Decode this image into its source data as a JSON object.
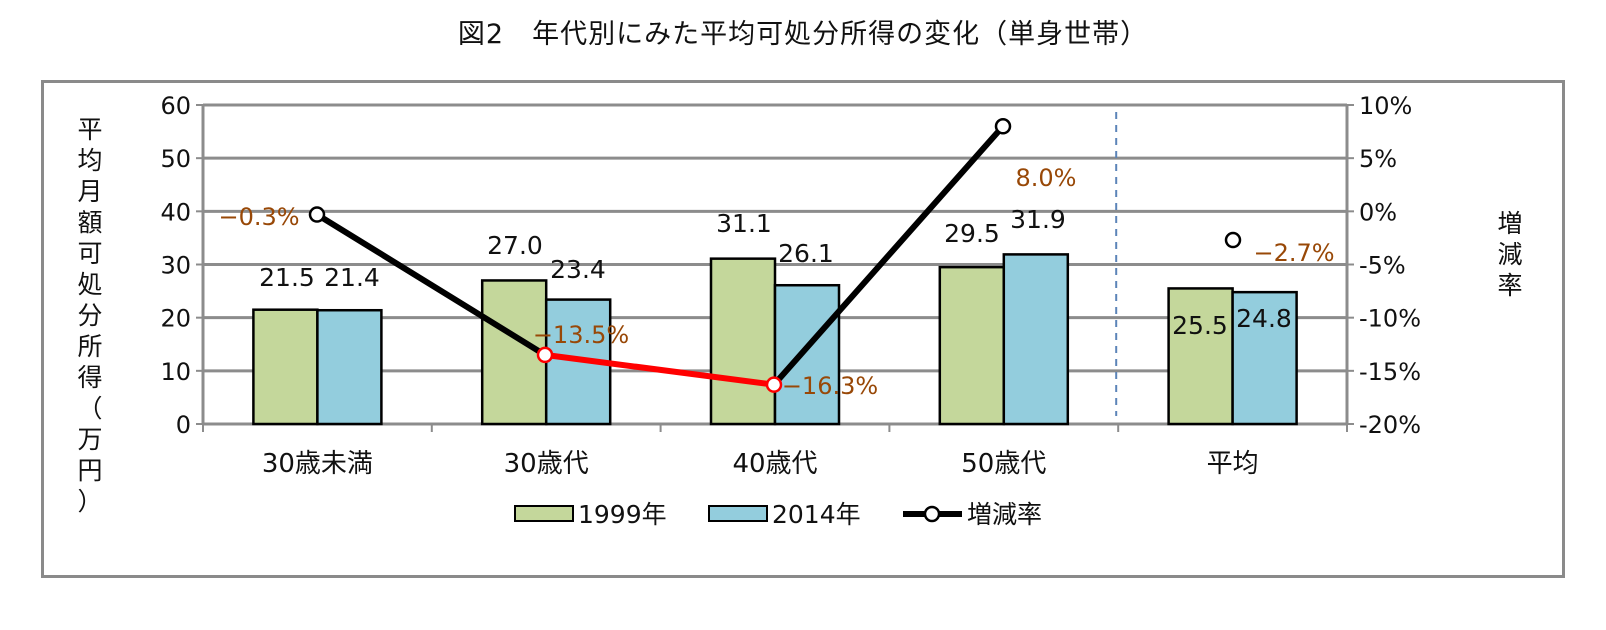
{
  "title": "図2　年代別にみた平均可処分所得の変化（単身世帯）",
  "chart_data": {
    "type": "bar+line",
    "title": "図2　年代別にみた平均可処分所得の変化（単身世帯）",
    "categories": [
      "30歳未満",
      "30歳代",
      "40歳代",
      "50歳代",
      "平均"
    ],
    "ylabel": "平均月額可処分所得（万円）",
    "y2label": "増減率",
    "ylim": [
      0,
      60
    ],
    "y_ticks": [
      0,
      10,
      20,
      30,
      40,
      50,
      60
    ],
    "y2lim": [
      -20,
      10
    ],
    "y2_ticks": [
      "-20%",
      "-15%",
      "-10%",
      "-5%",
      "0%",
      "5%",
      "10%"
    ],
    "grid": true,
    "legend_position": "bottom",
    "series": [
      {
        "name": "1999年",
        "kind": "bar",
        "axis": "left",
        "color": "#c4d79b",
        "values": [
          21.5,
          27.0,
          31.1,
          29.5,
          25.5
        ],
        "labels": [
          "21.5",
          "27.0",
          "31.1",
          "29.5",
          "25.5"
        ]
      },
      {
        "name": "2014年",
        "kind": "bar",
        "axis": "left",
        "color": "#93cddd",
        "values": [
          21.4,
          23.4,
          26.1,
          31.9,
          24.8
        ],
        "labels": [
          "21.4",
          "23.4",
          "26.1",
          "31.9",
          "24.8"
        ]
      },
      {
        "name": "増減率",
        "kind": "line",
        "axis": "right",
        "color": "#000000",
        "negative_segment_color": "#ff0000",
        "values": [
          -0.3,
          -13.5,
          -16.3,
          8.0,
          -2.7
        ],
        "labels": [
          "−0.3%",
          "−13.5%",
          "−16.3%",
          "8.0%",
          "−2.7%"
        ],
        "label_color": "#984807"
      }
    ]
  }
}
